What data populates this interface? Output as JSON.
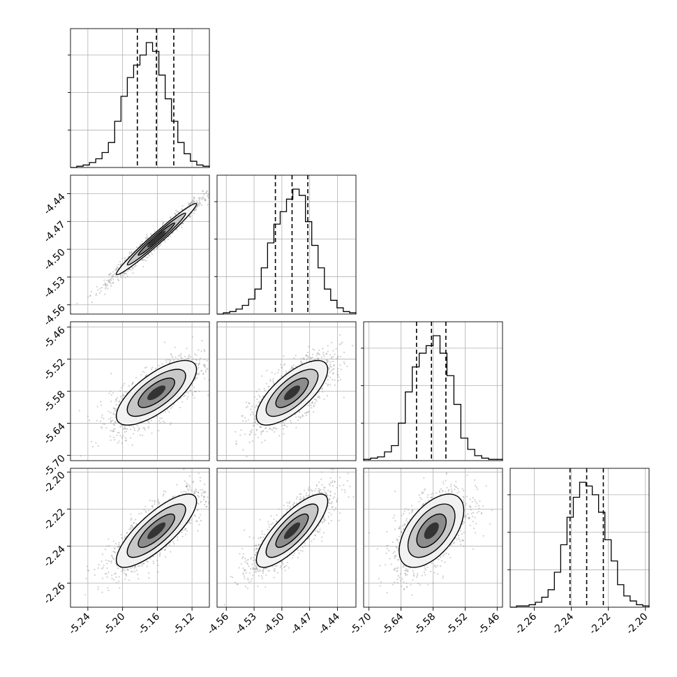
{
  "chart_data": {
    "type": "corner",
    "parameters": [
      {
        "index": 0,
        "range": [
          -5.26,
          -5.1
        ],
        "ticks": [
          "-5.24",
          "-5.20",
          "-5.16",
          "-5.12"
        ],
        "tick_values": [
          -5.24,
          -5.2,
          -5.16,
          -5.12
        ],
        "quantiles": [
          -5.183,
          -5.161,
          -5.141
        ],
        "histogram": [
          0,
          0.01,
          0.02,
          0.04,
          0.07,
          0.12,
          0.2,
          0.37,
          0.57,
          0.72,
          0.82,
          0.9,
          1.0,
          0.93,
          0.74,
          0.55,
          0.37,
          0.2,
          0.11,
          0.05,
          0.02,
          0.01
        ]
      },
      {
        "index": 1,
        "range": [
          -4.57,
          -4.42
        ],
        "ticks": [
          "-4.56",
          "-4.53",
          "-4.50",
          "-4.47",
          "-4.44"
        ],
        "tick_values": [
          -4.56,
          -4.53,
          -4.5,
          -4.47,
          -4.44
        ],
        "quantiles": [
          -4.507,
          -4.489,
          -4.472
        ],
        "histogram": [
          0,
          0.01,
          0.02,
          0.04,
          0.07,
          0.12,
          0.2,
          0.37,
          0.57,
          0.72,
          0.82,
          0.92,
          1.0,
          0.95,
          0.74,
          0.55,
          0.37,
          0.2,
          0.11,
          0.05,
          0.02,
          0.01
        ]
      },
      {
        "index": 2,
        "range": [
          -5.71,
          -5.45
        ],
        "ticks": [
          "-5.70",
          "-5.64",
          "-5.58",
          "-5.52",
          "-5.46"
        ],
        "tick_values": [
          -5.7,
          -5.64,
          -5.58,
          -5.52,
          -5.46
        ],
        "quantiles": [
          -5.611,
          -5.583,
          -5.556
        ],
        "histogram": [
          0.01,
          0.02,
          0.03,
          0.07,
          0.12,
          0.3,
          0.55,
          0.75,
          0.86,
          0.92,
          1.0,
          0.86,
          0.68,
          0.45,
          0.18,
          0.09,
          0.04,
          0.02,
          0.01,
          0.01
        ]
      },
      {
        "index": 3,
        "range": [
          -2.273,
          -2.198
        ],
        "ticks": [
          "-2.26",
          "-2.24",
          "-2.22",
          "-2.20"
        ],
        "tick_values": [
          -2.26,
          -2.24,
          -2.22,
          -2.2
        ],
        "quantiles": [
          -2.2407,
          -2.2317,
          -2.2227
        ],
        "histogram": [
          0,
          0.01,
          0.01,
          0.02,
          0.04,
          0.08,
          0.14,
          0.28,
          0.5,
          0.72,
          0.88,
          1.0,
          0.97,
          0.9,
          0.76,
          0.54,
          0.37,
          0.18,
          0.09,
          0.05,
          0.02,
          0.01
        ]
      }
    ],
    "pairs": [
      {
        "x": 0,
        "y": 1,
        "correlation": 0.98
      },
      {
        "x": 0,
        "y": 2,
        "correlation": 0.72
      },
      {
        "x": 1,
        "y": 2,
        "correlation": 0.72
      },
      {
        "x": 0,
        "y": 3,
        "correlation": 0.8
      },
      {
        "x": 1,
        "y": 3,
        "correlation": 0.8
      },
      {
        "x": 2,
        "y": 3,
        "correlation": 0.55
      }
    ],
    "grid": true,
    "contour_levels": 3,
    "line_color": "#000000",
    "grid_color": "#b0b0b0",
    "point_color": "#9a9a9a"
  }
}
